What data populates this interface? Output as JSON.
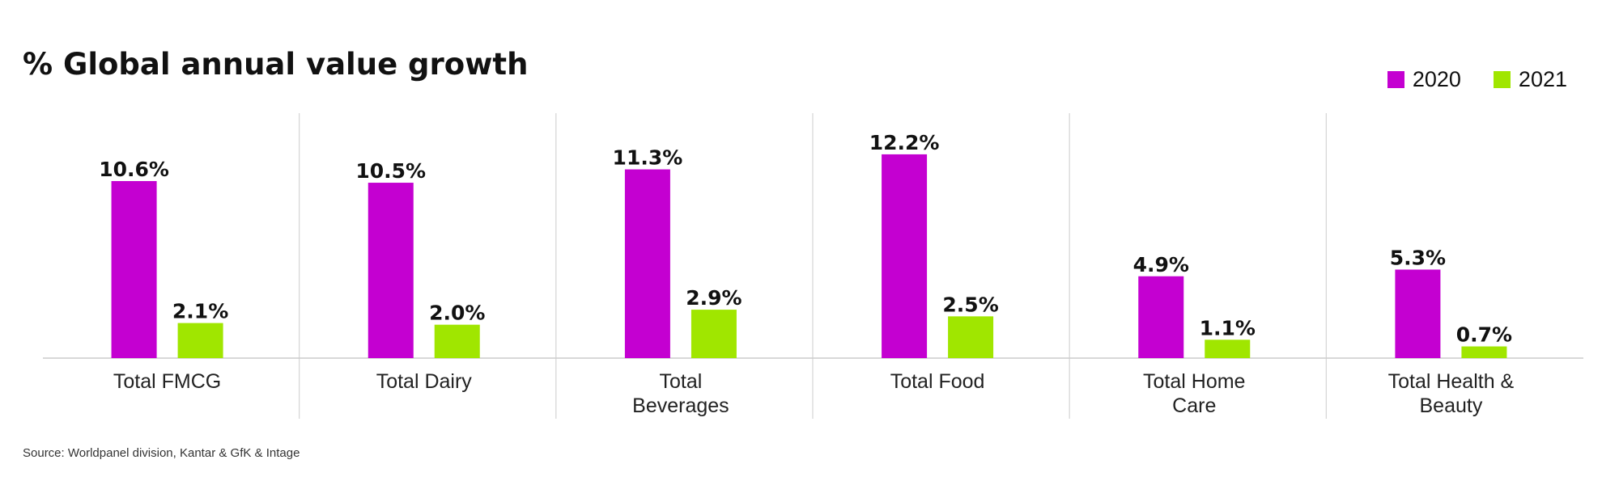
{
  "chart_data": {
    "type": "bar",
    "title": "% Global annual value growth",
    "categories": [
      "Total FMCG",
      "Total Dairy",
      "Total Beverages",
      "Total Food",
      "Total Home Care",
      "Total Health & Beauty"
    ],
    "category_lines": [
      [
        "Total FMCG"
      ],
      [
        "Total Dairy"
      ],
      [
        "Total",
        "Beverages"
      ],
      [
        "Total Food"
      ],
      [
        "Total Home",
        "Care"
      ],
      [
        "Total Health &",
        "Beauty"
      ]
    ],
    "series": [
      {
        "name": "2020",
        "values": [
          10.6,
          10.5,
          11.3,
          12.2,
          4.9,
          5.3
        ],
        "color": "#c400d1"
      },
      {
        "name": "2021",
        "values": [
          2.1,
          2.0,
          2.9,
          2.5,
          1.1,
          0.7
        ],
        "color": "#a0e600"
      }
    ],
    "value_suffix": "%",
    "ylim": [
      0,
      13.6
    ],
    "grid": false,
    "legend_position": "top-right",
    "source": "Source: Worldpanel division, Kantar & GfK & Intage"
  }
}
